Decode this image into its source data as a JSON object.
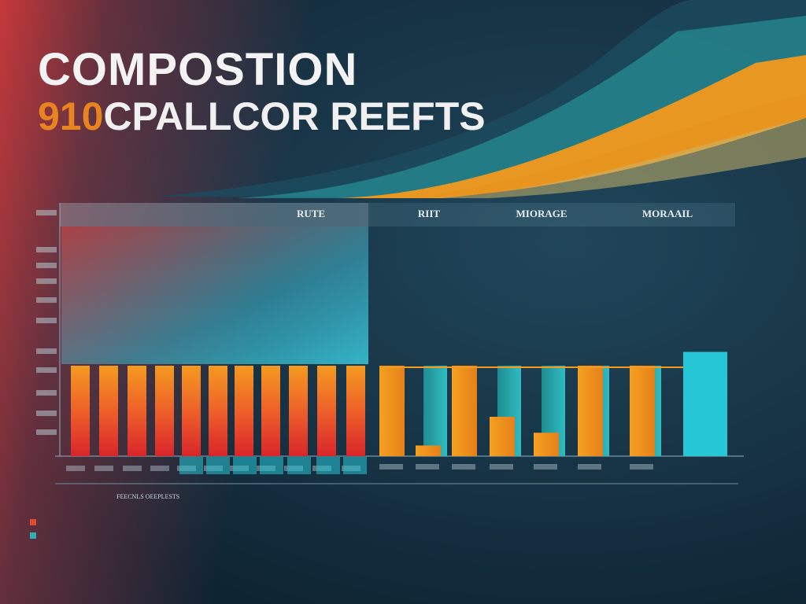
{
  "title": {
    "line1": "COMPOSTION",
    "line2_number": "910",
    "line2_text": "CPALLCOR REEFTS"
  },
  "colors": {
    "red": "#e04a30",
    "orange": "#f39a1c",
    "teal": "#2bb0b3",
    "cyan": "#27c6d6",
    "text": "#cfe0e8"
  },
  "chart_data": {
    "type": "bar",
    "header_labels": [
      "RUTE",
      "RIIT",
      "MIORAGE",
      "MORAAIL"
    ],
    "y_tick_labels": [
      "",
      "",
      "",
      "",
      "",
      "",
      "",
      "",
      "",
      "",
      ""
    ],
    "subtitle": "FEECNLS OEEPLESTS",
    "group_left": {
      "values": [
        0.85,
        0.85,
        0.85,
        0.85,
        0.85,
        0.85,
        0.85,
        0.85,
        0.85,
        0.85,
        0.85
      ],
      "categories": [
        "",
        "",
        "",
        "",
        "",
        "",
        "",
        "",
        "",
        "",
        ""
      ]
    },
    "group_right": {
      "categories": [
        "",
        "",
        "",
        "",
        "",
        "",
        ""
      ],
      "series": [
        {
          "values": [
            0.85,
            0.1,
            0.85,
            0.37,
            0.22,
            0.85,
            0.85
          ]
        },
        {
          "values": [
            0,
            0.85,
            0,
            0.85,
            0.85,
            0.85,
            0.85
          ]
        }
      ],
      "extra_bar": 0.98
    },
    "ylim": [
      0,
      1
    ]
  },
  "legend": [
    {
      "color": "#e04a30",
      "text": ""
    },
    {
      "color": "#2bb0b3",
      "text": ""
    }
  ]
}
